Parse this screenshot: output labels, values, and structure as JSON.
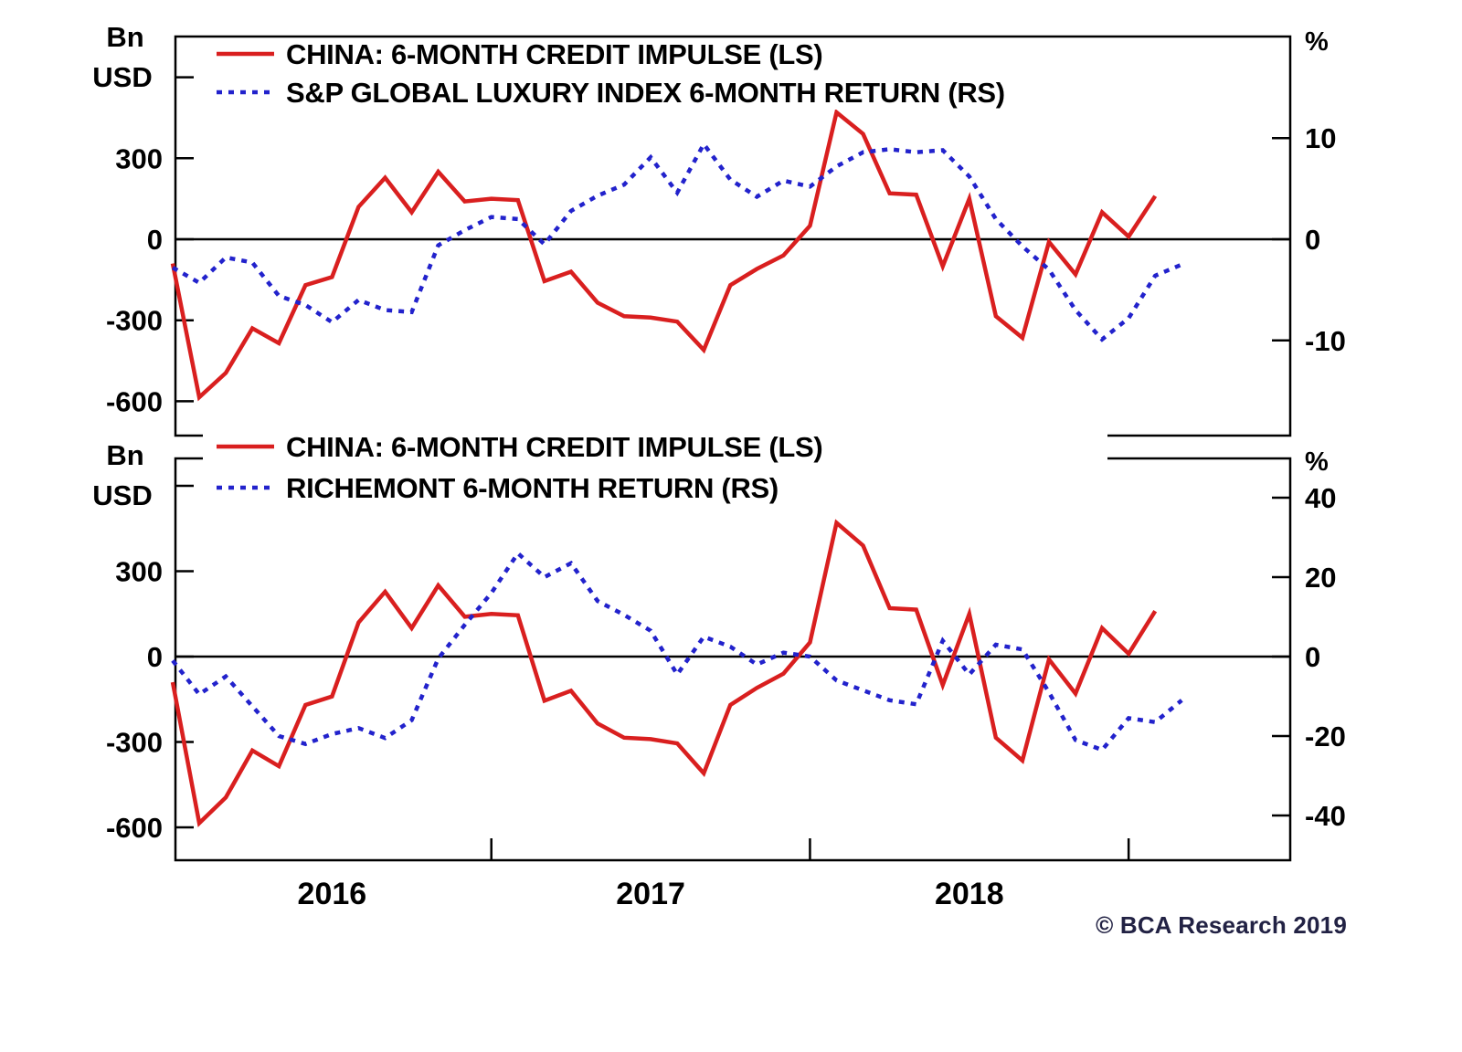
{
  "figure": {
    "background": "#ffffff",
    "source_note": "two stacked line panels sharing the same red series"
  },
  "footer": {
    "copyright": "© BCA Research 2019"
  },
  "x_axis": {
    "year_labels": [
      "2016",
      "2017",
      "2018"
    ],
    "note": "monthly points, Jan 2016 - Mar 2019; ticks mark year boundaries"
  },
  "chart_data": [
    {
      "type": "line",
      "panel": "top",
      "left_axis": {
        "unit": "Bn USD",
        "tick_labels": [
          300,
          0,
          -300,
          -600
        ],
        "unlabeled_ticks": [
          600
        ],
        "range": [
          -730,
          740
        ]
      },
      "right_axis": {
        "unit": "%",
        "tick_labels": [
          10,
          0,
          -10
        ],
        "range": [
          -20,
          20
        ]
      },
      "grid": "zero-line-only",
      "legend_position": "top-left-inside",
      "series": [
        {
          "name": "CHINA: 6-MONTH CREDIT IMPULSE (LS)",
          "axis": "left",
          "color": "#d91f1f",
          "line_style": "solid",
          "values": [
            -90,
            -585,
            -495,
            -330,
            -385,
            -170,
            -140,
            120,
            228,
            100,
            250,
            140,
            150,
            145,
            -155,
            -120,
            -235,
            -285,
            -290,
            -305,
            -410,
            -170,
            -110,
            -60,
            50,
            470,
            390,
            170,
            165,
            -100,
            150,
            -285,
            -365,
            -10,
            -130,
            100,
            10,
            160
          ]
        },
        {
          "name": "S&P GLOBAL LUXURY INDEX 6-MONTH RETURN (RS)",
          "axis": "right",
          "color": "#2222cc",
          "line_style": "dashed",
          "values": [
            -2.8,
            -4.3,
            -1.8,
            -2.3,
            -5.6,
            -6.5,
            -8.2,
            -6.0,
            -7.0,
            -7.2,
            -0.6,
            0.9,
            2.2,
            2.0,
            -0.5,
            2.8,
            4.3,
            5.4,
            8.1,
            4.6,
            9.4,
            5.9,
            4.2,
            5.8,
            5.2,
            7.2,
            8.6,
            8.9,
            8.6,
            8.8,
            6.2,
            2.0,
            -0.7,
            -3.0,
            -7.0,
            -9.9,
            -7.8,
            -3.6,
            -2.5
          ]
        }
      ]
    },
    {
      "type": "line",
      "panel": "bottom",
      "left_axis": {
        "unit": "Bn USD",
        "tick_labels": [
          300,
          0,
          -300,
          -600
        ],
        "unlabeled_ticks": [
          600
        ],
        "range": [
          -770,
          700
        ]
      },
      "right_axis": {
        "unit": "%",
        "tick_labels": [
          40,
          20,
          0,
          -20,
          -40
        ],
        "range": [
          -50,
          50
        ]
      },
      "grid": "zero-line-only",
      "legend_position": "top-left-inside",
      "series": [
        {
          "name": "CHINA: 6-MONTH CREDIT IMPULSE (LS)",
          "axis": "left",
          "color": "#d91f1f",
          "line_style": "solid",
          "values": [
            -90,
            -585,
            -495,
            -330,
            -385,
            -170,
            -140,
            120,
            228,
            100,
            250,
            140,
            150,
            145,
            -155,
            -120,
            -235,
            -285,
            -290,
            -305,
            -410,
            -170,
            -110,
            -60,
            50,
            470,
            390,
            170,
            165,
            -100,
            150,
            -285,
            -365,
            -10,
            -130,
            100,
            10,
            160
          ]
        },
        {
          "name": "RICHEMONT 6-MONTH RETURN (RS)",
          "axis": "right",
          "color": "#2222cc",
          "line_style": "dashed",
          "values": [
            -1.0,
            -9.5,
            -5.0,
            -12.5,
            -20.0,
            -22.0,
            -19.5,
            -18.0,
            -20.5,
            -16.0,
            -0.5,
            8.0,
            16.0,
            26.0,
            20.0,
            23.5,
            14.0,
            10.5,
            6.5,
            -4.5,
            5.0,
            2.5,
            -2.0,
            1.0,
            0.0,
            -6.0,
            -8.5,
            -11.0,
            -12.0,
            4.0,
            -4.5,
            3.0,
            1.8,
            -9.0,
            -21.0,
            -23.5,
            -15.5,
            -16.5,
            -11.0
          ]
        }
      ]
    }
  ]
}
